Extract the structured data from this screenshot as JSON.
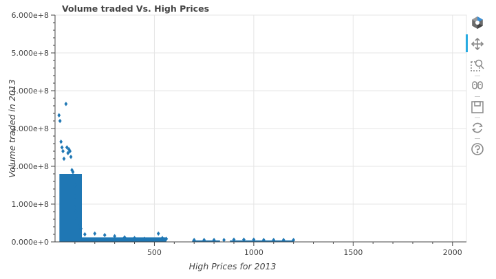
{
  "chart_data": {
    "type": "scatter",
    "title": "Volume traded Vs. High Prices",
    "xlabel": "High Prices for 2013",
    "ylabel": "Volume traded in 2013",
    "xlim": [
      0,
      2070
    ],
    "ylim": [
      0,
      600000000
    ],
    "x_ticks": [
      500,
      1000,
      1500,
      2000
    ],
    "x_tick_labels": [
      "500",
      "1000",
      "1500",
      "2000"
    ],
    "y_ticks": [
      0,
      100000000,
      200000000,
      300000000,
      400000000,
      500000000,
      600000000
    ],
    "y_tick_labels": [
      "0.000e+0",
      "1.000e+8",
      "2.000e+8",
      "3.000e+8",
      "4.000e+8",
      "5.000e+8",
      "6.000e+8"
    ],
    "grid": true,
    "marker": "diamond",
    "marker_color": "#1f77b4",
    "series": [
      {
        "values": [
          [
            20,
            335000000
          ],
          [
            25,
            320000000
          ],
          [
            30,
            265000000
          ],
          [
            35,
            250000000
          ],
          [
            40,
            240000000
          ],
          [
            45,
            220000000
          ],
          [
            55,
            365000000
          ],
          [
            60,
            250000000
          ],
          [
            65,
            235000000
          ],
          [
            70,
            245000000
          ],
          [
            75,
            240000000
          ],
          [
            80,
            225000000
          ],
          [
            85,
            190000000
          ],
          [
            90,
            185000000
          ],
          [
            95,
            175000000
          ],
          [
            100,
            150000000
          ],
          [
            100,
            120000000
          ],
          [
            100,
            90000000
          ],
          [
            105,
            80000000
          ],
          [
            110,
            60000000
          ],
          [
            125,
            45000000
          ],
          [
            130,
            35000000
          ],
          [
            150,
            20000000
          ],
          [
            200,
            22000000
          ],
          [
            250,
            18000000
          ],
          [
            300,
            15000000
          ],
          [
            350,
            12000000
          ],
          [
            400,
            10000000
          ],
          [
            450,
            8000000
          ],
          [
            520,
            22000000
          ],
          [
            540,
            10000000
          ],
          [
            560,
            8000000
          ],
          [
            700,
            5000000
          ],
          [
            750,
            5000000
          ],
          [
            800,
            5000000
          ],
          [
            850,
            5000000
          ],
          [
            900,
            6000000
          ],
          [
            950,
            6000000
          ],
          [
            1000,
            6000000
          ],
          [
            1050,
            5000000
          ],
          [
            1100,
            5000000
          ],
          [
            1150,
            5000000
          ],
          [
            1200,
            5000000
          ]
        ]
      }
    ],
    "dense_bands": [
      {
        "x0": 22,
        "x1": 135,
        "y0": 0,
        "y1": 180000000,
        "color": "#1f77b4"
      },
      {
        "x0": 135,
        "x1": 560,
        "y0": 0,
        "y1": 12000000,
        "color": "#1f77b4"
      },
      {
        "x0": 690,
        "x1": 830,
        "y0": 0,
        "y1": 4000000,
        "color": "#1f77b4"
      },
      {
        "x0": 880,
        "x1": 1200,
        "y0": 0,
        "y1": 4000000,
        "color": "#1f77b4"
      }
    ]
  },
  "toolbar": {
    "tools": [
      {
        "name": "bokeh-logo-icon",
        "active": false,
        "clickable": true
      },
      {
        "name": "pan-icon",
        "active": true,
        "clickable": true
      },
      {
        "name": "box-zoom-icon",
        "active": false,
        "clickable": true
      },
      {
        "name": "wheel-zoom-icon",
        "active": false,
        "clickable": true
      },
      {
        "name": "save-icon",
        "active": false,
        "clickable": true
      },
      {
        "name": "reset-icon",
        "active": false,
        "clickable": true
      },
      {
        "name": "help-icon",
        "active": false,
        "clickable": true
      }
    ]
  }
}
